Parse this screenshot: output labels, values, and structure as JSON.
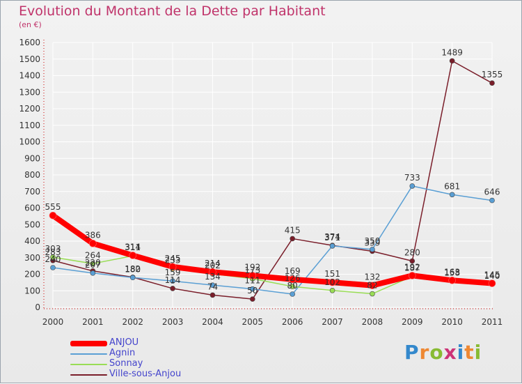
{
  "title": "Evolution du Montant de la Dette par Habitant",
  "subtitle": "(en €)",
  "logo_text": "Proxiti",
  "chart_data": {
    "type": "line",
    "title": "Evolution du Montant de la Dette par Habitant",
    "subtitle": "(en €)",
    "x": [
      "2000",
      "2001",
      "2002",
      "2003",
      "2004",
      "2005",
      "2006",
      "2007",
      "2008",
      "2009",
      "2010",
      "2011"
    ],
    "ylim": [
      0,
      1600
    ],
    "yticks": [
      0,
      100,
      200,
      300,
      400,
      500,
      600,
      700,
      800,
      900,
      1000,
      1100,
      1200,
      1300,
      1400,
      1500,
      1600
    ],
    "grid": true,
    "legend_position": "bottom-left",
    "series": [
      {
        "name": "ANJOU",
        "color": "#ff0000",
        "values": [
          555,
          386,
          314,
          245,
          214,
          192,
          169,
          151,
          132,
          192,
          163,
          145
        ]
      },
      {
        "name": "Agnin",
        "color": "#5a9fd4",
        "values": [
          240,
          207,
          180,
          159,
          134,
          111,
          80,
          371,
          350,
          733,
          681,
          646
        ]
      },
      {
        "name": "Sonnay",
        "color": "#99dd55",
        "values": [
          303,
          264,
          311,
          233,
          202,
          173,
          126,
          102,
          82,
          187,
          158,
          140
        ]
      },
      {
        "name": "Ville-sous-Anjou",
        "color": "#7a1e2a",
        "values": [
          283,
          220,
          182,
          114,
          74,
          50,
          415,
          374,
          339,
          280,
          1489,
          1355
        ]
      }
    ]
  }
}
